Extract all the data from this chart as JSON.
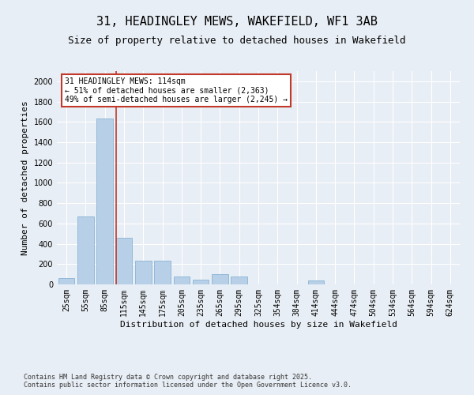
{
  "title": "31, HEADINGLEY MEWS, WAKEFIELD, WF1 3AB",
  "subtitle": "Size of property relative to detached houses in Wakefield",
  "xlabel": "Distribution of detached houses by size in Wakefield",
  "ylabel": "Number of detached properties",
  "categories": [
    "25sqm",
    "55sqm",
    "85sqm",
    "115sqm",
    "145sqm",
    "175sqm",
    "205sqm",
    "235sqm",
    "265sqm",
    "295sqm",
    "325sqm",
    "354sqm",
    "384sqm",
    "414sqm",
    "444sqm",
    "474sqm",
    "504sqm",
    "534sqm",
    "564sqm",
    "594sqm",
    "624sqm"
  ],
  "values": [
    60,
    670,
    1630,
    460,
    230,
    230,
    80,
    50,
    100,
    75,
    0,
    0,
    0,
    40,
    0,
    0,
    0,
    0,
    0,
    0,
    0
  ],
  "bar_color": "#b8cfe8",
  "bar_edge_color": "#7aabcf",
  "vline_color": "#c0392b",
  "annotation_line1": "31 HEADINGLEY MEWS: 114sqm",
  "annotation_line2": "← 51% of detached houses are smaller (2,363)",
  "annotation_line3": "49% of semi-detached houses are larger (2,245) →",
  "annotation_box_color": "#c0392b",
  "ylim": [
    0,
    2100
  ],
  "yticks": [
    0,
    200,
    400,
    600,
    800,
    1000,
    1200,
    1400,
    1600,
    1800,
    2000
  ],
  "footnote1": "Contains HM Land Registry data © Crown copyright and database right 2025.",
  "footnote2": "Contains public sector information licensed under the Open Government Licence v3.0.",
  "background_color": "#e8eef5",
  "plot_bg_color": "#e8eef5",
  "title_fontsize": 11,
  "subtitle_fontsize": 9,
  "axis_label_fontsize": 8,
  "tick_fontsize": 7,
  "annotation_fontsize": 7,
  "footnote_fontsize": 6
}
